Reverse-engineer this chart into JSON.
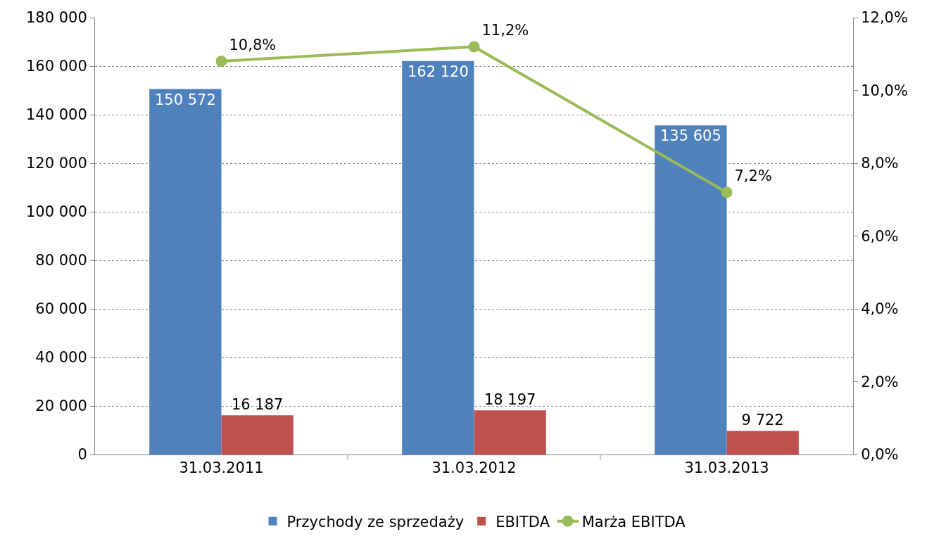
{
  "chart_data": {
    "type": "bar",
    "categories": [
      "31.03.2011",
      "31.03.2012",
      "31.03.2013"
    ],
    "series": [
      {
        "name": "Przychody ze sprzedaży",
        "color": "#4f81bd",
        "values": [
          150572,
          162120,
          135605
        ],
        "value_labels": [
          "150 572",
          "162 120",
          "135 605"
        ]
      },
      {
        "name": "EBITDA",
        "color": "#c0504d",
        "values": [
          16187,
          18197,
          9722
        ],
        "value_labels": [
          "16 187",
          "18 197",
          "9 722"
        ]
      },
      {
        "name": "Marża EBITDA",
        "type": "line",
        "axis": "y2",
        "color": "#9bbb59",
        "marker": "circle",
        "values": [
          10.8,
          11.2,
          7.2
        ],
        "value_labels": [
          "10,8%",
          "11,2%",
          "7,2%"
        ]
      }
    ],
    "ylim": [
      0,
      180000
    ],
    "yticks": [
      {
        "value": 0,
        "label": "0"
      },
      {
        "value": 20000,
        "label": "20 000"
      },
      {
        "value": 40000,
        "label": "40 000"
      },
      {
        "value": 60000,
        "label": "60 000"
      },
      {
        "value": 80000,
        "label": "80 000"
      },
      {
        "value": 100000,
        "label": "100 000"
      },
      {
        "value": 120000,
        "label": "120 000"
      },
      {
        "value": 140000,
        "label": "140 000"
      },
      {
        "value": 160000,
        "label": "160 000"
      },
      {
        "value": 180000,
        "label": "180 000"
      }
    ],
    "y2lim": [
      0,
      12
    ],
    "y2ticks": [
      {
        "value": 0,
        "label": "0,0%"
      },
      {
        "value": 2,
        "label": "2,0%"
      },
      {
        "value": 4,
        "label": "4,0%"
      },
      {
        "value": 6,
        "label": "6,0%"
      },
      {
        "value": 8,
        "label": "8,0%"
      },
      {
        "value": 10,
        "label": "10,0%"
      },
      {
        "value": 12,
        "label": "12,0%"
      }
    ],
    "grid": "y",
    "legend": "bottom"
  }
}
